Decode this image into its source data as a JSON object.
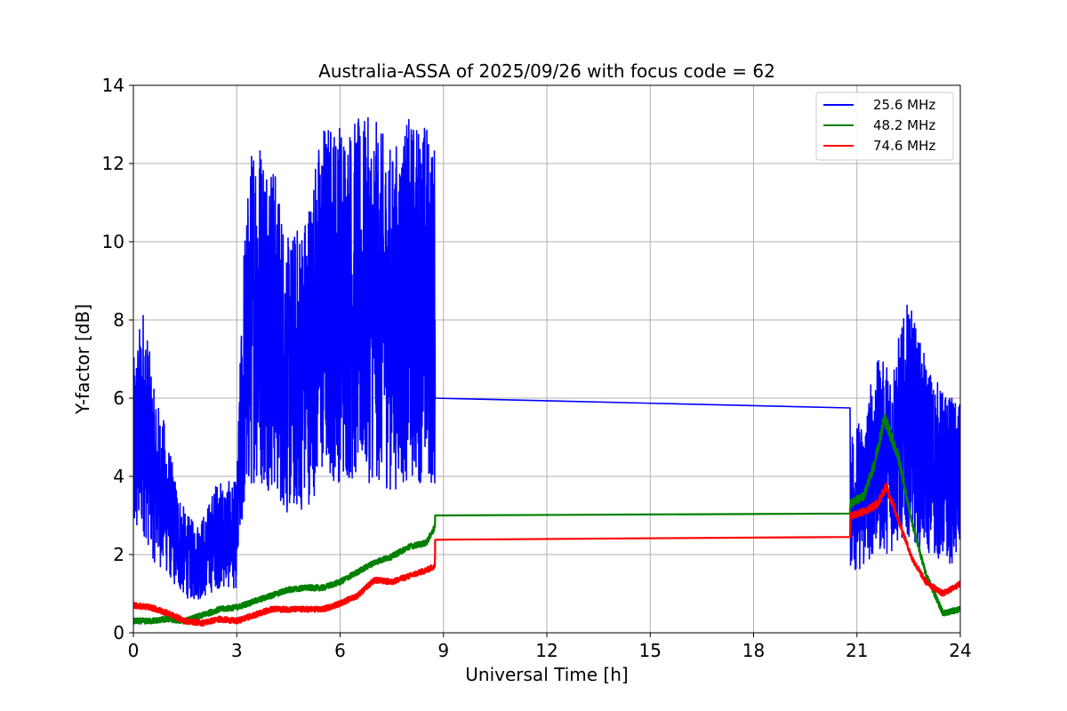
{
  "chart_data": {
    "type": "line",
    "title": "Australia-ASSA of 2025/09/26 with focus code = 62",
    "xlabel": "Universal Time [h]",
    "ylabel": "Y-factor [dB]",
    "xlim": [
      0,
      24
    ],
    "ylim": [
      0,
      14
    ],
    "xticks": [
      0,
      3,
      6,
      9,
      12,
      15,
      18,
      21,
      24
    ],
    "yticks": [
      0,
      2,
      4,
      6,
      8,
      10,
      12,
      14
    ],
    "grid": true,
    "legend_position": "top-right",
    "series": [
      {
        "name": "25.6 MHz",
        "color": "#0000ff",
        "noise": "high",
        "points": [
          [
            0.0,
            4.5
          ],
          [
            0.3,
            5.5
          ],
          [
            0.6,
            4.0
          ],
          [
            0.9,
            3.5
          ],
          [
            1.2,
            2.6
          ],
          [
            1.5,
            2.0
          ],
          [
            1.8,
            1.8
          ],
          [
            2.1,
            2.0
          ],
          [
            2.4,
            2.5
          ],
          [
            2.7,
            2.5
          ],
          [
            3.0,
            2.5
          ],
          [
            3.2,
            6.5
          ],
          [
            3.5,
            8.5
          ],
          [
            4.0,
            8.0
          ],
          [
            4.5,
            6.5
          ],
          [
            5.0,
            7.0
          ],
          [
            5.5,
            8.5
          ],
          [
            6.0,
            8.5
          ],
          [
            6.5,
            8.5
          ],
          [
            7.0,
            8.5
          ],
          [
            7.5,
            8.0
          ],
          [
            8.0,
            8.5
          ],
          [
            8.5,
            8.5
          ],
          [
            8.75,
            8.0
          ],
          [
            8.76,
            6.0
          ],
          [
            20.8,
            5.75
          ],
          [
            20.81,
            3.5
          ],
          [
            21.2,
            3.5
          ],
          [
            21.5,
            4.5
          ],
          [
            22.0,
            4.5
          ],
          [
            22.5,
            5.5
          ],
          [
            23.0,
            4.5
          ],
          [
            23.5,
            4.0
          ],
          [
            24.0,
            3.8
          ]
        ]
      },
      {
        "name": "48.2 MHz",
        "color": "#008000",
        "noise": "low",
        "points": [
          [
            0.0,
            0.3
          ],
          [
            0.5,
            0.3
          ],
          [
            1.0,
            0.35
          ],
          [
            1.5,
            0.3
          ],
          [
            2.0,
            0.45
          ],
          [
            2.5,
            0.6
          ],
          [
            3.0,
            0.65
          ],
          [
            3.5,
            0.8
          ],
          [
            4.0,
            0.95
          ],
          [
            4.5,
            1.1
          ],
          [
            5.0,
            1.15
          ],
          [
            5.5,
            1.15
          ],
          [
            6.0,
            1.3
          ],
          [
            6.5,
            1.55
          ],
          [
            7.0,
            1.8
          ],
          [
            7.5,
            1.95
          ],
          [
            8.0,
            2.2
          ],
          [
            8.5,
            2.3
          ],
          [
            8.75,
            2.7
          ],
          [
            8.76,
            3.0
          ],
          [
            20.8,
            3.05
          ],
          [
            20.81,
            3.3
          ],
          [
            21.2,
            3.5
          ],
          [
            21.5,
            4.3
          ],
          [
            21.8,
            5.5
          ],
          [
            22.2,
            4.5
          ],
          [
            22.6,
            2.8
          ],
          [
            23.0,
            1.5
          ],
          [
            23.5,
            0.5
          ],
          [
            24.0,
            0.6
          ]
        ]
      },
      {
        "name": "74.6 MHz",
        "color": "#ff0000",
        "noise": "low",
        "points": [
          [
            0.0,
            0.7
          ],
          [
            0.5,
            0.65
          ],
          [
            1.0,
            0.5
          ],
          [
            1.5,
            0.3
          ],
          [
            2.0,
            0.25
          ],
          [
            2.5,
            0.35
          ],
          [
            3.0,
            0.3
          ],
          [
            3.5,
            0.45
          ],
          [
            4.0,
            0.6
          ],
          [
            4.5,
            0.6
          ],
          [
            5.0,
            0.6
          ],
          [
            5.5,
            0.6
          ],
          [
            6.0,
            0.75
          ],
          [
            6.5,
            0.95
          ],
          [
            7.0,
            1.35
          ],
          [
            7.5,
            1.3
          ],
          [
            8.0,
            1.45
          ],
          [
            8.5,
            1.6
          ],
          [
            8.75,
            1.7
          ],
          [
            8.76,
            2.38
          ],
          [
            20.8,
            2.45
          ],
          [
            20.81,
            3.0
          ],
          [
            21.2,
            3.1
          ],
          [
            21.6,
            3.3
          ],
          [
            21.85,
            3.75
          ],
          [
            22.2,
            2.9
          ],
          [
            22.6,
            1.9
          ],
          [
            23.0,
            1.3
          ],
          [
            23.5,
            1.0
          ],
          [
            24.0,
            1.25
          ]
        ]
      }
    ]
  }
}
